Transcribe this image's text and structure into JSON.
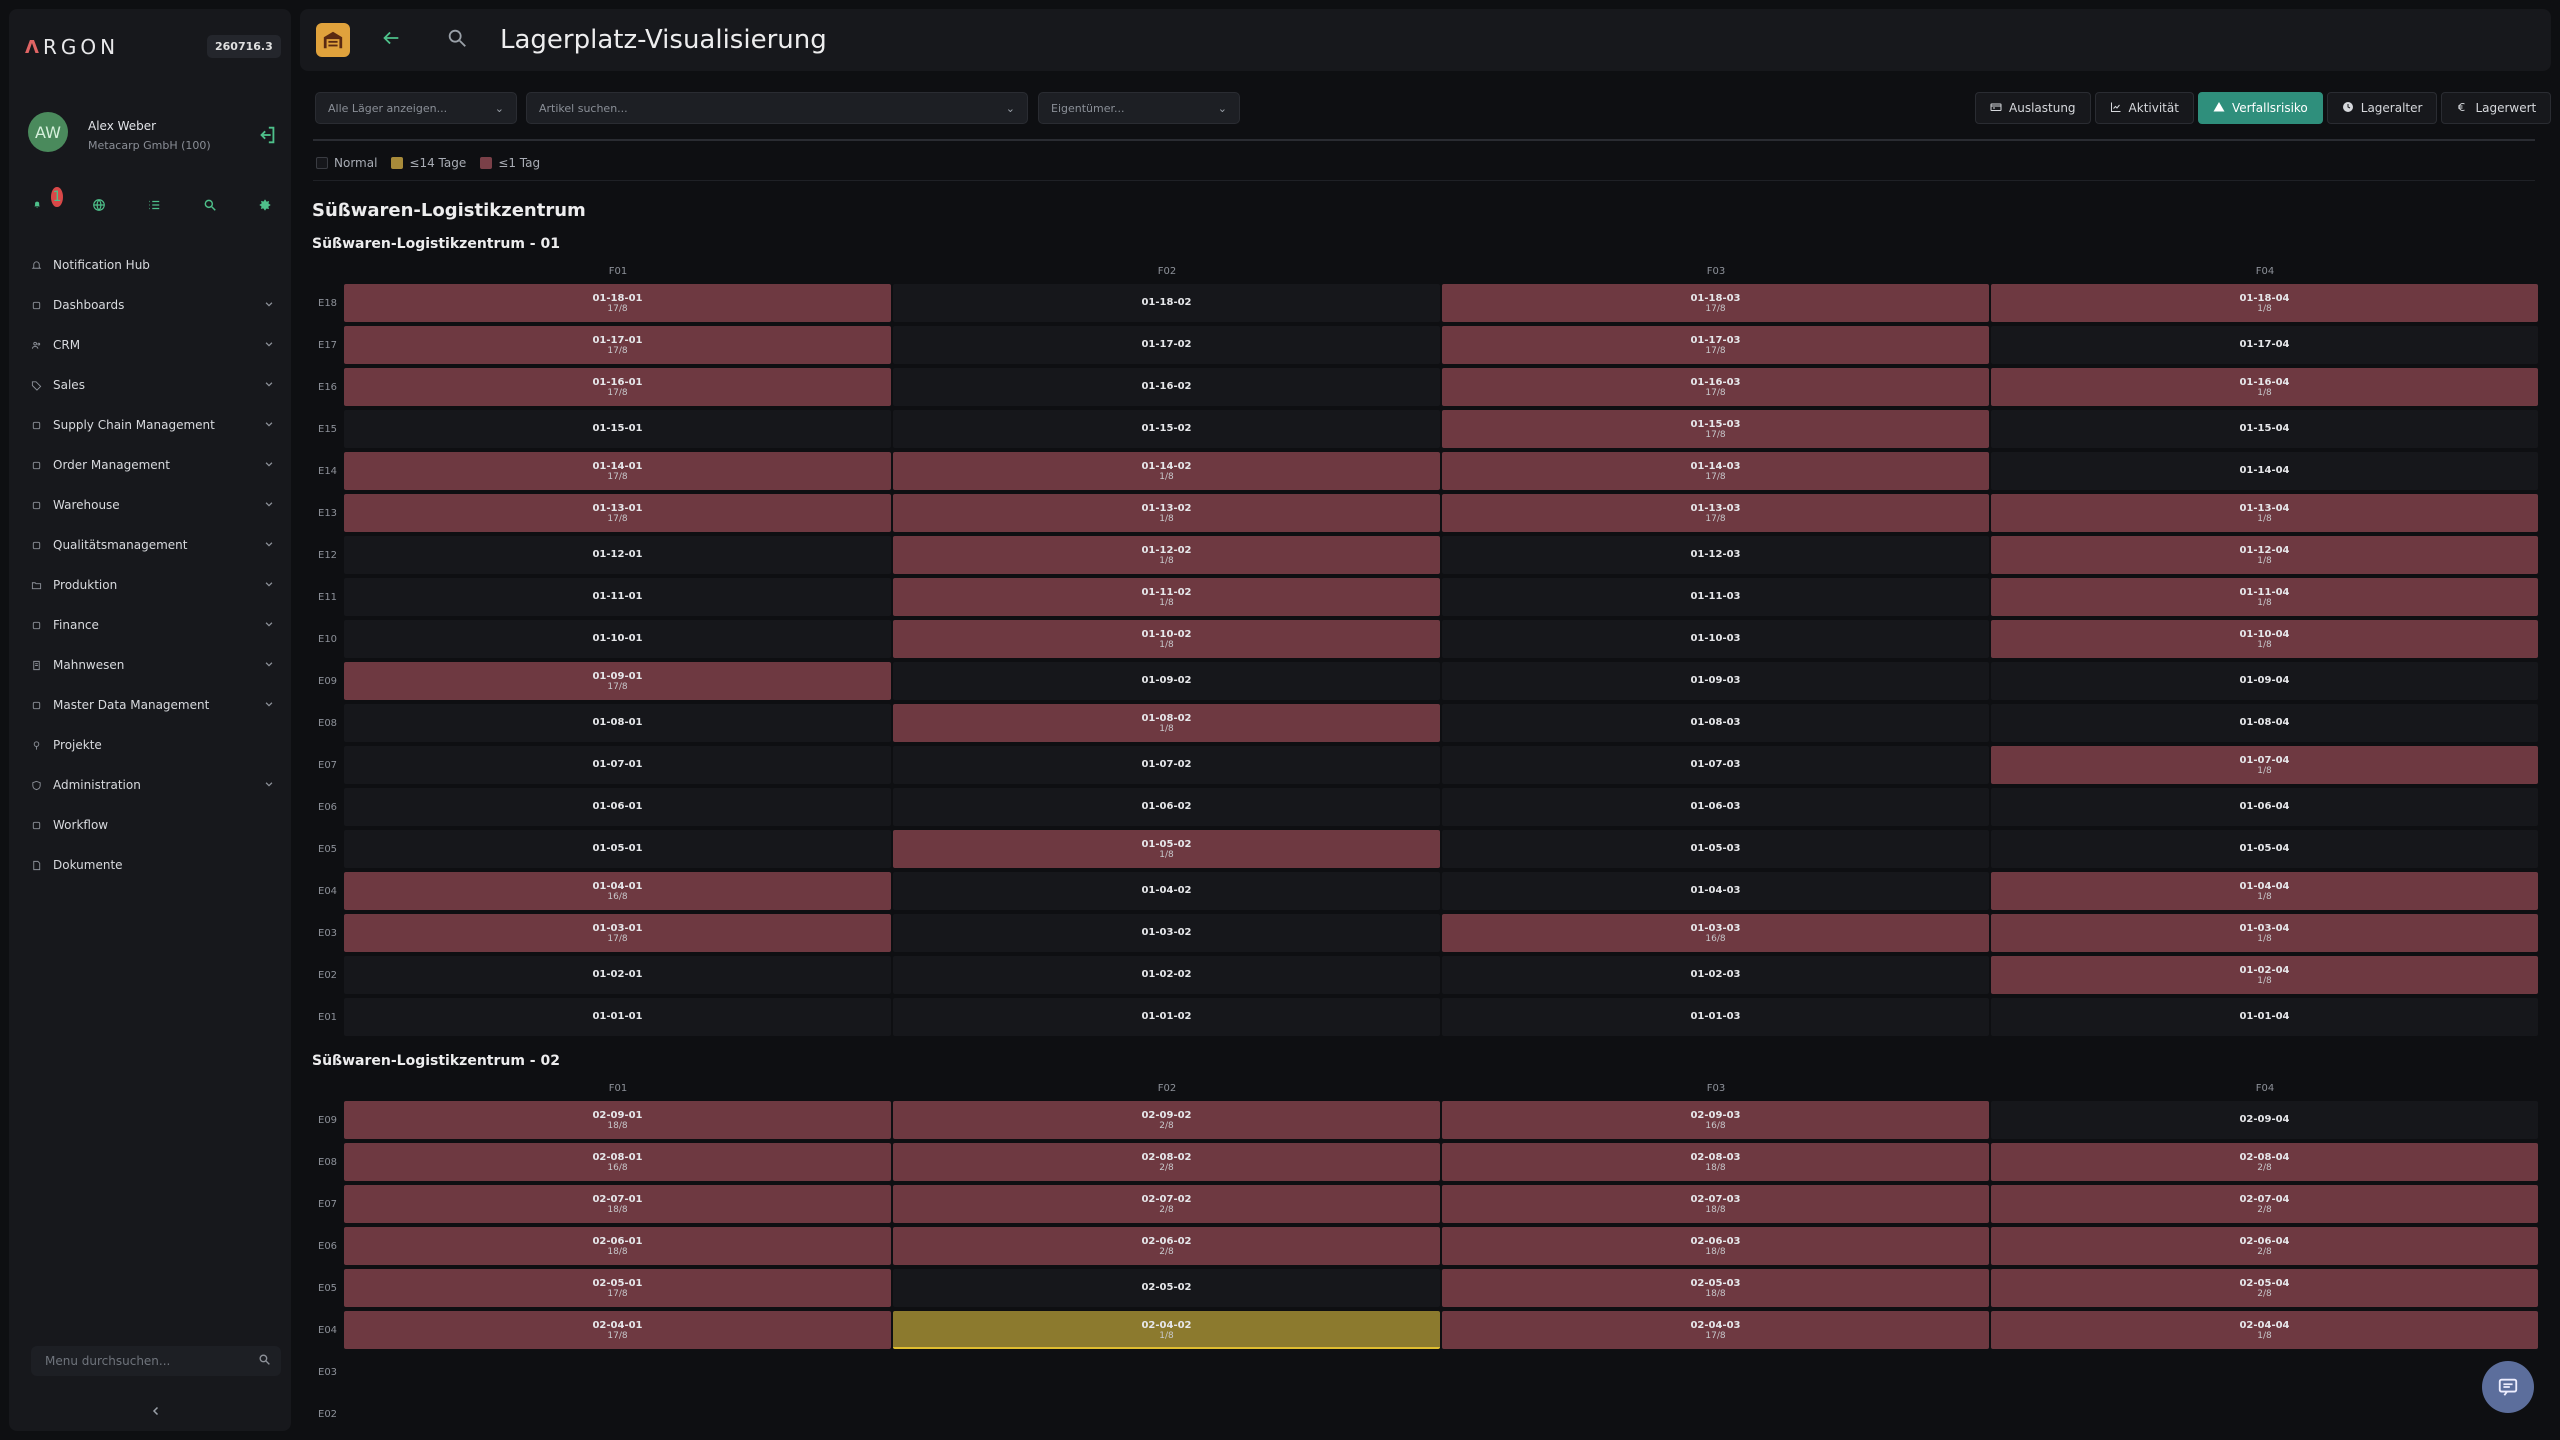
{
  "sidebar": {
    "logo": "RGON",
    "logo_mark": "Λ",
    "version": "260716.3",
    "avatar_initials": "AW",
    "user_name": "Alex Weber",
    "user_company": "Metacarp GmbH (100)",
    "notification_count": "1",
    "nav": [
      {
        "label": "Notification Hub",
        "icon": "bell-icon",
        "chevron": false
      },
      {
        "label": "Dashboards",
        "icon": "dashboard-icon",
        "chevron": true
      },
      {
        "label": "CRM",
        "icon": "users-icon",
        "chevron": true
      },
      {
        "label": "Sales",
        "icon": "tag-icon",
        "chevron": true
      },
      {
        "label": "Supply Chain Management",
        "icon": "link-icon",
        "chevron": true
      },
      {
        "label": "Order Management",
        "icon": "clipboard-icon",
        "chevron": true
      },
      {
        "label": "Warehouse",
        "icon": "warehouse-icon",
        "chevron": true
      },
      {
        "label": "Qualitätsmanagement",
        "icon": "quality-icon",
        "chevron": true
      },
      {
        "label": "Produktion",
        "icon": "folder-icon",
        "chevron": true
      },
      {
        "label": "Finance",
        "icon": "coins-icon",
        "chevron": true
      },
      {
        "label": "Mahnwesen",
        "icon": "document-icon",
        "chevron": true
      },
      {
        "label": "Master Data Management",
        "icon": "database-icon",
        "chevron": true
      },
      {
        "label": "Projekte",
        "icon": "pin-icon",
        "chevron": false
      },
      {
        "label": "Administration",
        "icon": "shield-icon",
        "chevron": true
      },
      {
        "label": "Workflow",
        "icon": "workflow-icon",
        "chevron": false
      },
      {
        "label": "Dokumente",
        "icon": "file-icon",
        "chevron": false
      }
    ],
    "menu_search_placeholder": "Menu durchsuchen..."
  },
  "header": {
    "title": "Lagerplatz-Visualisierung"
  },
  "filters": {
    "warehouse_placeholder": "Alle Läger anzeigen...",
    "article_placeholder": "Artikel suchen...",
    "owner_placeholder": "Eigentümer..."
  },
  "tabs": [
    {
      "label": "Auslastung",
      "icon": "truck-icon",
      "active": false
    },
    {
      "label": "Aktivität",
      "icon": "chart-icon",
      "active": false
    },
    {
      "label": "Verfallsrisiko",
      "icon": "warning-icon",
      "active": true
    },
    {
      "label": "Lageralter",
      "icon": "clock-icon",
      "active": false
    },
    {
      "label": "Lagerwert",
      "icon": "euro-icon",
      "active": false
    }
  ],
  "legend": [
    {
      "label": "Normal",
      "color": "#16171b"
    },
    {
      "label": "≤14 Tage",
      "color": "#a88b3a"
    },
    {
      "label": "≤1 Tag",
      "color": "#7a4048"
    }
  ],
  "main_title": "Süßwaren-Logistikzentrum",
  "colors": {
    "normal": "#16171b",
    "red": "#6e3941",
    "yellow": "#8c7a2e",
    "accent": "#2f8f7c"
  },
  "zones": [
    {
      "title": "Süßwaren-Logistikzentrum - 01",
      "columns": [
        "F01",
        "F02",
        "F03",
        "F04"
      ],
      "rows": [
        {
          "label": "E18",
          "cells": [
            [
              "01-18-01",
              "17/8",
              "red"
            ],
            [
              "01-18-02",
              "",
              "normal"
            ],
            [
              "01-18-03",
              "17/8",
              "red"
            ],
            [
              "01-18-04",
              "1/8",
              "red"
            ]
          ]
        },
        {
          "label": "E17",
          "cells": [
            [
              "01-17-01",
              "17/8",
              "red"
            ],
            [
              "01-17-02",
              "",
              "normal"
            ],
            [
              "01-17-03",
              "17/8",
              "red"
            ],
            [
              "01-17-04",
              "",
              "normal"
            ]
          ]
        },
        {
          "label": "E16",
          "cells": [
            [
              "01-16-01",
              "17/8",
              "red"
            ],
            [
              "01-16-02",
              "",
              "normal"
            ],
            [
              "01-16-03",
              "17/8",
              "red"
            ],
            [
              "01-16-04",
              "1/8",
              "red"
            ]
          ]
        },
        {
          "label": "E15",
          "cells": [
            [
              "01-15-01",
              "",
              "normal"
            ],
            [
              "01-15-02",
              "",
              "normal"
            ],
            [
              "01-15-03",
              "17/8",
              "red"
            ],
            [
              "01-15-04",
              "",
              "normal"
            ]
          ]
        },
        {
          "label": "E14",
          "cells": [
            [
              "01-14-01",
              "17/8",
              "red"
            ],
            [
              "01-14-02",
              "1/8",
              "red"
            ],
            [
              "01-14-03",
              "17/8",
              "red"
            ],
            [
              "01-14-04",
              "",
              "normal"
            ]
          ]
        },
        {
          "label": "E13",
          "cells": [
            [
              "01-13-01",
              "17/8",
              "red"
            ],
            [
              "01-13-02",
              "1/8",
              "red"
            ],
            [
              "01-13-03",
              "17/8",
              "red"
            ],
            [
              "01-13-04",
              "1/8",
              "red"
            ]
          ]
        },
        {
          "label": "E12",
          "cells": [
            [
              "01-12-01",
              "",
              "normal"
            ],
            [
              "01-12-02",
              "1/8",
              "red"
            ],
            [
              "01-12-03",
              "",
              "normal"
            ],
            [
              "01-12-04",
              "1/8",
              "red"
            ]
          ]
        },
        {
          "label": "E11",
          "cells": [
            [
              "01-11-01",
              "",
              "normal"
            ],
            [
              "01-11-02",
              "1/8",
              "red"
            ],
            [
              "01-11-03",
              "",
              "normal"
            ],
            [
              "01-11-04",
              "1/8",
              "red"
            ]
          ]
        },
        {
          "label": "E10",
          "cells": [
            [
              "01-10-01",
              "",
              "normal"
            ],
            [
              "01-10-02",
              "1/8",
              "red"
            ],
            [
              "01-10-03",
              "",
              "normal"
            ],
            [
              "01-10-04",
              "1/8",
              "red"
            ]
          ]
        },
        {
          "label": "E09",
          "cells": [
            [
              "01-09-01",
              "17/8",
              "red"
            ],
            [
              "01-09-02",
              "",
              "normal"
            ],
            [
              "01-09-03",
              "",
              "normal"
            ],
            [
              "01-09-04",
              "",
              "normal"
            ]
          ]
        },
        {
          "label": "E08",
          "cells": [
            [
              "01-08-01",
              "",
              "normal"
            ],
            [
              "01-08-02",
              "1/8",
              "red"
            ],
            [
              "01-08-03",
              "",
              "normal"
            ],
            [
              "01-08-04",
              "",
              "normal"
            ]
          ]
        },
        {
          "label": "E07",
          "cells": [
            [
              "01-07-01",
              "",
              "normal"
            ],
            [
              "01-07-02",
              "",
              "normal"
            ],
            [
              "01-07-03",
              "",
              "normal"
            ],
            [
              "01-07-04",
              "1/8",
              "red"
            ]
          ]
        },
        {
          "label": "E06",
          "cells": [
            [
              "01-06-01",
              "",
              "normal"
            ],
            [
              "01-06-02",
              "",
              "normal"
            ],
            [
              "01-06-03",
              "",
              "normal"
            ],
            [
              "01-06-04",
              "",
              "normal"
            ]
          ]
        },
        {
          "label": "E05",
          "cells": [
            [
              "01-05-01",
              "",
              "normal"
            ],
            [
              "01-05-02",
              "1/8",
              "red"
            ],
            [
              "01-05-03",
              "",
              "normal"
            ],
            [
              "01-05-04",
              "",
              "normal"
            ]
          ]
        },
        {
          "label": "E04",
          "cells": [
            [
              "01-04-01",
              "16/8",
              "red"
            ],
            [
              "01-04-02",
              "",
              "normal"
            ],
            [
              "01-04-03",
              "",
              "normal"
            ],
            [
              "01-04-04",
              "1/8",
              "red"
            ]
          ]
        },
        {
          "label": "E03",
          "cells": [
            [
              "01-03-01",
              "17/8",
              "red"
            ],
            [
              "01-03-02",
              "",
              "normal"
            ],
            [
              "01-03-03",
              "16/8",
              "red"
            ],
            [
              "01-03-04",
              "1/8",
              "red"
            ]
          ]
        },
        {
          "label": "E02",
          "cells": [
            [
              "01-02-01",
              "",
              "normal"
            ],
            [
              "01-02-02",
              "",
              "normal"
            ],
            [
              "01-02-03",
              "",
              "normal"
            ],
            [
              "01-02-04",
              "1/8",
              "red"
            ]
          ]
        },
        {
          "label": "E01",
          "cells": [
            [
              "01-01-01",
              "",
              "normal"
            ],
            [
              "01-01-02",
              "",
              "normal"
            ],
            [
              "01-01-03",
              "",
              "normal"
            ],
            [
              "01-01-04",
              "",
              "normal"
            ]
          ]
        }
      ]
    },
    {
      "title": "Süßwaren-Logistikzentrum - 02",
      "columns": [
        "F01",
        "F02",
        "F03",
        "F04"
      ],
      "rows": [
        {
          "label": "E09",
          "cells": [
            [
              "02-09-01",
              "18/8",
              "red"
            ],
            [
              "02-09-02",
              "2/8",
              "red"
            ],
            [
              "02-09-03",
              "16/8",
              "red"
            ],
            [
              "02-09-04",
              "",
              "normal"
            ]
          ]
        },
        {
          "label": "E08",
          "cells": [
            [
              "02-08-01",
              "16/8",
              "red"
            ],
            [
              "02-08-02",
              "2/8",
              "red"
            ],
            [
              "02-08-03",
              "18/8",
              "red"
            ],
            [
              "02-08-04",
              "2/8",
              "red"
            ]
          ]
        },
        {
          "label": "E07",
          "cells": [
            [
              "02-07-01",
              "18/8",
              "red"
            ],
            [
              "02-07-02",
              "2/8",
              "red"
            ],
            [
              "02-07-03",
              "18/8",
              "red"
            ],
            [
              "02-07-04",
              "2/8",
              "red"
            ]
          ]
        },
        {
          "label": "E06",
          "cells": [
            [
              "02-06-01",
              "18/8",
              "red"
            ],
            [
              "02-06-02",
              "2/8",
              "red"
            ],
            [
              "02-06-03",
              "18/8",
              "red"
            ],
            [
              "02-06-04",
              "2/8",
              "red"
            ]
          ]
        },
        {
          "label": "E05",
          "cells": [
            [
              "02-05-01",
              "17/8",
              "red"
            ],
            [
              "02-05-02",
              "",
              "normal"
            ],
            [
              "02-05-03",
              "18/8",
              "red"
            ],
            [
              "02-05-04",
              "2/8",
              "red"
            ]
          ]
        },
        {
          "label": "E04",
          "cells": [
            [
              "02-04-01",
              "17/8",
              "red"
            ],
            [
              "02-04-02",
              "1/8",
              "yellow"
            ],
            [
              "02-04-03",
              "17/8",
              "red"
            ],
            [
              "02-04-04",
              "1/8",
              "red"
            ]
          ]
        },
        {
          "label": "E03",
          "cells": []
        },
        {
          "label": "E02",
          "cells": []
        }
      ]
    }
  ]
}
